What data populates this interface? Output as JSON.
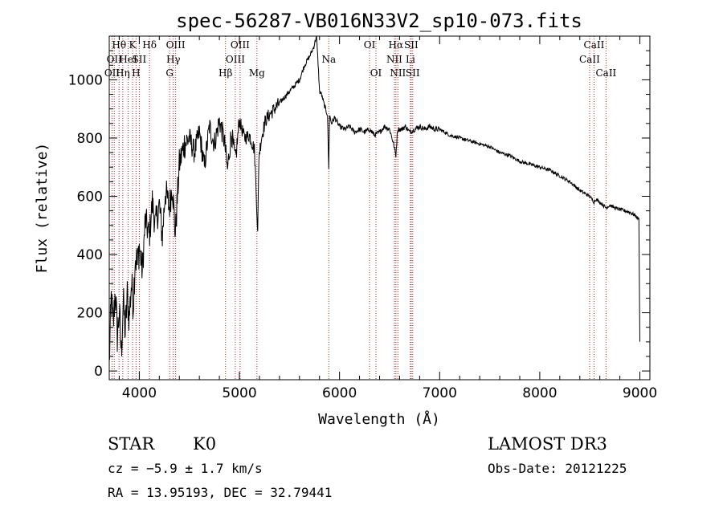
{
  "chart_data": {
    "type": "line",
    "title": "spec-56287-VB016N33V2_sp10-073.fits",
    "xlabel": "Wavelength (Å)",
    "ylabel": "Flux (relative)",
    "xlim": [
      3700,
      9100
    ],
    "ylim": [
      -30,
      1150
    ],
    "xticks": [
      4000,
      5000,
      6000,
      7000,
      8000,
      9000
    ],
    "xtick_labels": [
      "4000",
      "5000",
      "6000",
      "7000",
      "8000",
      "9000"
    ],
    "yticks": [
      0,
      200,
      400,
      600,
      800,
      1000
    ],
    "ytick_labels": [
      "0",
      "200",
      "400",
      "600",
      "800",
      "1000"
    ],
    "grid": false,
    "line_color": "#000000",
    "marker_color": "#b22222",
    "series": [
      {
        "x": [
          3700,
          3720,
          3740,
          3760,
          3780,
          3800,
          3820,
          3840,
          3860,
          3880,
          3900,
          3920,
          3940,
          3960,
          3980,
          4000,
          4030,
          4060,
          4100,
          4130,
          4160,
          4200,
          4230,
          4260,
          4300,
          4330,
          4360,
          4400,
          4450,
          4500,
          4550,
          4600,
          4650,
          4700,
          4750,
          4800,
          4850,
          4880,
          4920,
          4960,
          5000,
          5050,
          5100,
          5150,
          5170,
          5183,
          5195,
          5220,
          5260,
          5300,
          5350,
          5400,
          5450,
          5500,
          5550,
          5600,
          5650,
          5700,
          5740,
          5770,
          5790,
          5800,
          5820,
          5850,
          5880,
          5892,
          5900,
          5920,
          5950,
          6000,
          6050,
          6100,
          6150,
          6200,
          6250,
          6300,
          6350,
          6400,
          6450,
          6500,
          6540,
          6563,
          6580,
          6620,
          6660,
          6700,
          6750,
          6800,
          6850,
          6900,
          6950,
          7000,
          7100,
          7200,
          7300,
          7400,
          7500,
          7600,
          7700,
          7800,
          7900,
          8000,
          8100,
          8200,
          8300,
          8400,
          8498,
          8542,
          8560,
          8600,
          8662,
          8700,
          8750,
          8800,
          8850,
          8900,
          8950,
          8990,
          9000
        ],
        "y": [
          20,
          250,
          150,
          280,
          120,
          200,
          60,
          240,
          130,
          260,
          180,
          300,
          230,
          400,
          360,
          430,
          340,
          520,
          460,
          580,
          500,
          570,
          460,
          620,
          560,
          640,
          470,
          710,
          780,
          800,
          750,
          820,
          700,
          840,
          780,
          860,
          790,
          690,
          820,
          720,
          860,
          800,
          810,
          760,
          600,
          470,
          740,
          800,
          860,
          880,
          900,
          920,
          940,
          960,
          980,
          1000,
          1050,
          1080,
          1110,
          1150,
          1030,
          960,
          950,
          910,
          880,
          690,
          880,
          850,
          870,
          840,
          830,
          840,
          820,
          830,
          820,
          830,
          810,
          820,
          840,
          830,
          780,
          740,
          830,
          830,
          840,
          820,
          830,
          840,
          830,
          840,
          830,
          830,
          810,
          800,
          790,
          780,
          770,
          750,
          740,
          720,
          710,
          700,
          690,
          670,
          650,
          620,
          600,
          580,
          590,
          580,
          560,
          570,
          560,
          555,
          550,
          545,
          535,
          520,
          100
        ]
      }
    ],
    "lines": [
      {
        "wl": 3728,
        "label": "OII",
        "row": 2
      },
      {
        "wl": 3750,
        "label": "OII",
        "row": 1
      },
      {
        "wl": 3798,
        "label": "Hθ",
        "row": 0
      },
      {
        "wl": 3835,
        "label": "Hη",
        "row": 2
      },
      {
        "wl": 3889,
        "label": "HeI",
        "row": 1
      },
      {
        "wl": 3933,
        "label": "K",
        "row": 0
      },
      {
        "wl": 3968,
        "label": "H",
        "row": 2
      },
      {
        "wl": 4000,
        "label": "SII",
        "row": 1
      },
      {
        "wl": 4102,
        "label": "Hδ",
        "row": 0
      },
      {
        "wl": 4303,
        "label": "G",
        "row": 2
      },
      {
        "wl": 4340,
        "label": "Hγ",
        "row": 1
      },
      {
        "wl": 4363,
        "label": "OIII",
        "row": 0
      },
      {
        "wl": 4861,
        "label": "Hβ",
        "row": 2
      },
      {
        "wl": 4959,
        "label": "OIII",
        "row": 1
      },
      {
        "wl": 5007,
        "label": "OIII",
        "row": 0
      },
      {
        "wl": 5175,
        "label": "Mg",
        "row": 2
      },
      {
        "wl": 5893,
        "label": "Na",
        "row": 1
      },
      {
        "wl": 6300,
        "label": "OI",
        "row": 0
      },
      {
        "wl": 6364,
        "label": "OI",
        "row": 2
      },
      {
        "wl": 6548,
        "label": "NII",
        "row": 1
      },
      {
        "wl": 6563,
        "label": "Hα",
        "row": 0
      },
      {
        "wl": 6583,
        "label": "NII",
        "row": 2
      },
      {
        "wl": 6708,
        "label": "Li",
        "row": 1
      },
      {
        "wl": 6716,
        "label": "SII",
        "row": 0
      },
      {
        "wl": 6731,
        "label": "SII",
        "row": 2
      },
      {
        "wl": 8498,
        "label": "CaII",
        "row": 1
      },
      {
        "wl": 8542,
        "label": "CaII",
        "row": 0
      },
      {
        "wl": 8662,
        "label": "CaII",
        "row": 2
      }
    ]
  },
  "footer": {
    "class_label": "STAR",
    "subclass": "K0",
    "survey": "LAMOST DR3",
    "cz": "cz = −5.9 ± 1.7 km/s",
    "obs_date": "Obs-Date: 20121225",
    "coords": "RA =  13.95193, DEC =  32.79441"
  }
}
